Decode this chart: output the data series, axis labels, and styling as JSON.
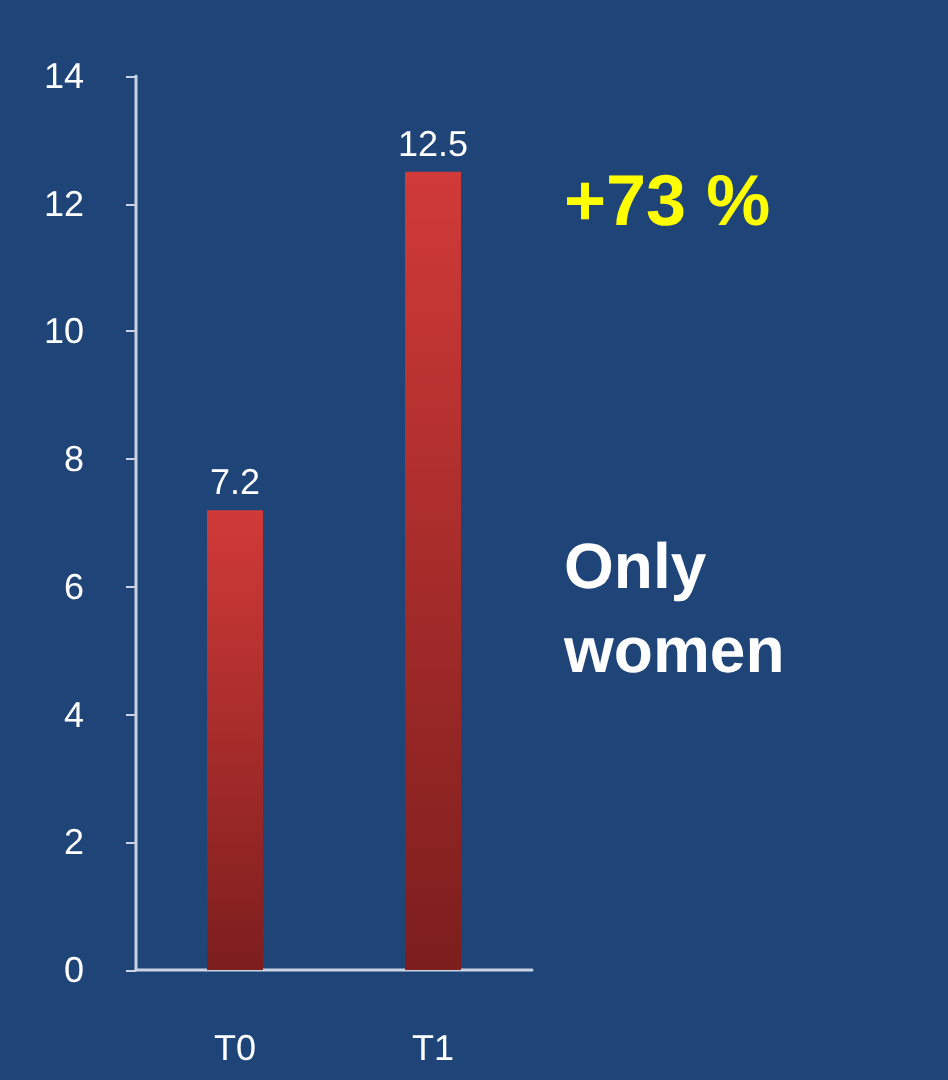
{
  "chart_data": {
    "type": "bar",
    "categories": [
      "T0",
      "T1"
    ],
    "values": [
      7.2,
      12.5
    ],
    "color": "#d03a38",
    "ylim": [
      0,
      14
    ],
    "yticks": [
      0,
      2,
      4,
      6,
      8,
      10,
      12,
      14
    ],
    "data_labels": true,
    "grid": false,
    "annotations": [
      "+73 %",
      "Only\nwomen"
    ]
  }
}
